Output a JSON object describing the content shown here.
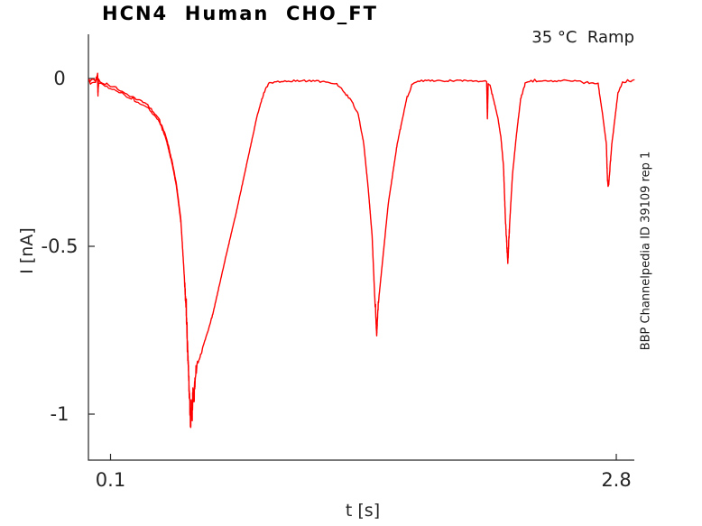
{
  "chart_data": {
    "type": "line",
    "title": "HCN4  Human  CHO_FT",
    "top_right_annotation": "35 °C  Ramp",
    "right_side_annotation": "BBP Channelpedia ID 39109 rep 1",
    "xlabel": "t [s]",
    "ylabel": "I [nA]",
    "x_ticks": {
      "values": [
        0.1,
        2.8
      ],
      "labels": [
        "0.1",
        "2.8"
      ]
    },
    "y_ticks": {
      "values": [
        0,
        -0.5,
        -1
      ],
      "labels": [
        "0",
        "-0.5",
        "-1"
      ]
    },
    "xlim": [
      -0.02,
      2.9
    ],
    "ylim": [
      -1.14,
      0.13
    ],
    "grid": false,
    "box": false,
    "legend": null,
    "axis_color": "#262626",
    "series": [
      {
        "name": "HCN4 current trace rep 1",
        "color": "#ff0000",
        "points": [
          [
            -0.015,
            -0.002
          ],
          [
            0.0,
            -0.006
          ],
          [
            0.02,
            -0.004
          ],
          [
            0.031,
            0.012
          ],
          [
            0.033,
            -0.044
          ],
          [
            0.036,
            -0.006
          ],
          [
            0.08,
            -0.018
          ],
          [
            0.129,
            -0.027
          ],
          [
            0.211,
            -0.054
          ],
          [
            0.292,
            -0.075
          ],
          [
            0.355,
            -0.116
          ],
          [
            0.394,
            -0.169
          ],
          [
            0.427,
            -0.242
          ],
          [
            0.451,
            -0.312
          ],
          [
            0.475,
            -0.419
          ],
          [
            0.49,
            -0.554
          ],
          [
            0.504,
            -0.688
          ],
          [
            0.511,
            -0.8
          ],
          [
            0.518,
            -0.9
          ],
          [
            0.524,
            -0.99
          ],
          [
            0.528,
            -1.03
          ],
          [
            0.532,
            -0.96
          ],
          [
            0.536,
            -1.005
          ],
          [
            0.54,
            -0.93
          ],
          [
            0.545,
            -0.965
          ],
          [
            0.551,
            -0.9
          ],
          [
            0.558,
            -0.86
          ],
          [
            0.581,
            -0.823
          ],
          [
            0.644,
            -0.707
          ],
          [
            0.706,
            -0.554
          ],
          [
            0.774,
            -0.392
          ],
          [
            0.836,
            -0.231
          ],
          [
            0.884,
            -0.108
          ],
          [
            0.918,
            -0.043
          ],
          [
            0.947,
            -0.013
          ],
          [
            1.05,
            -0.007
          ],
          [
            1.2,
            -0.007
          ],
          [
            1.308,
            -0.016
          ],
          [
            1.351,
            -0.043
          ],
          [
            1.39,
            -0.07
          ],
          [
            1.423,
            -0.108
          ],
          [
            1.452,
            -0.196
          ],
          [
            1.476,
            -0.331
          ],
          [
            1.496,
            -0.465
          ],
          [
            1.51,
            -0.645
          ],
          [
            1.517,
            -0.72
          ],
          [
            1.521,
            -0.768
          ],
          [
            1.526,
            -0.7
          ],
          [
            1.534,
            -0.645
          ],
          [
            1.56,
            -0.5
          ],
          [
            1.582,
            -0.376
          ],
          [
            1.63,
            -0.196
          ],
          [
            1.68,
            -0.062
          ],
          [
            1.712,
            -0.016
          ],
          [
            1.76,
            -0.007
          ],
          [
            1.95,
            -0.006
          ],
          [
            2.102,
            -0.008
          ],
          [
            2.108,
            -0.012
          ],
          [
            2.112,
            -0.12
          ],
          [
            2.116,
            -0.016
          ],
          [
            2.126,
            -0.022
          ],
          [
            2.15,
            -0.075
          ],
          [
            2.169,
            -0.121
          ],
          [
            2.184,
            -0.175
          ],
          [
            2.198,
            -0.263
          ],
          [
            2.208,
            -0.419
          ],
          [
            2.215,
            -0.49
          ],
          [
            2.219,
            -0.532
          ],
          [
            2.221,
            -0.548
          ],
          [
            2.225,
            -0.5
          ],
          [
            2.232,
            -0.419
          ],
          [
            2.246,
            -0.285
          ],
          [
            2.265,
            -0.177
          ],
          [
            2.289,
            -0.062
          ],
          [
            2.313,
            -0.016
          ],
          [
            2.345,
            -0.008
          ],
          [
            2.55,
            -0.006
          ],
          [
            2.703,
            -0.016
          ],
          [
            2.727,
            -0.108
          ],
          [
            2.747,
            -0.196
          ],
          [
            2.752,
            -0.29
          ],
          [
            2.756,
            -0.322
          ],
          [
            2.76,
            -0.315
          ],
          [
            2.764,
            -0.282
          ],
          [
            2.776,
            -0.196
          ],
          [
            2.795,
            -0.108
          ],
          [
            2.809,
            -0.043
          ],
          [
            2.833,
            -0.013
          ],
          [
            2.86,
            -0.008
          ],
          [
            2.895,
            -0.006
          ]
        ]
      }
    ],
    "trough_summary": [
      {
        "t_s": 0.53,
        "I_nA": -1.03
      },
      {
        "t_s": 1.52,
        "I_nA": -0.77
      },
      {
        "t_s": 2.22,
        "I_nA": -0.55
      },
      {
        "t_s": 2.76,
        "I_nA": -0.32
      }
    ]
  }
}
